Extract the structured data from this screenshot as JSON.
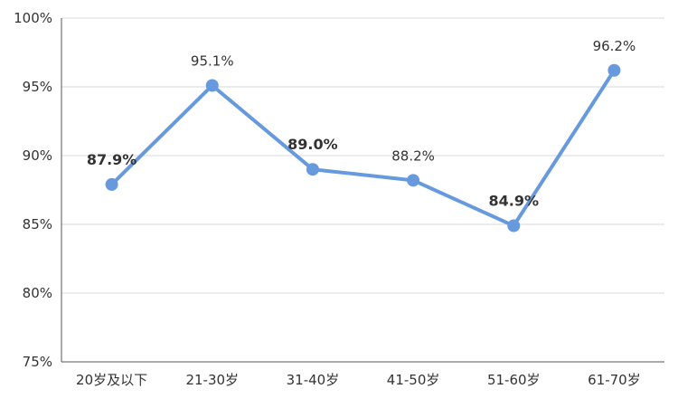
{
  "chart_data": {
    "type": "line",
    "title": "",
    "xlabel": "",
    "ylabel": "",
    "categories": [
      "20岁及以下",
      "21-30岁",
      "31-40岁",
      "41-50岁",
      "51-60岁",
      "61-70岁"
    ],
    "series": [
      {
        "values": [
          87.9,
          95.1,
          89.0,
          88.2,
          84.9,
          96.2
        ],
        "labels": [
          "87.9%",
          "95.1%",
          "89.0%",
          "88.2%",
          "84.9%",
          "96.2%"
        ],
        "bold_labels": [
          true,
          false,
          true,
          false,
          true,
          false
        ],
        "color": "#6699dd"
      }
    ],
    "ylim": [
      75,
      100
    ],
    "yticks": [
      75,
      80,
      85,
      90,
      95,
      100
    ],
    "ytick_labels": [
      "75%",
      "80%",
      "85%",
      "90%",
      "95%",
      "100%"
    ],
    "grid": true,
    "legend": "none",
    "gridline_color": "#d9d9d9",
    "axis_color": "#555555"
  }
}
